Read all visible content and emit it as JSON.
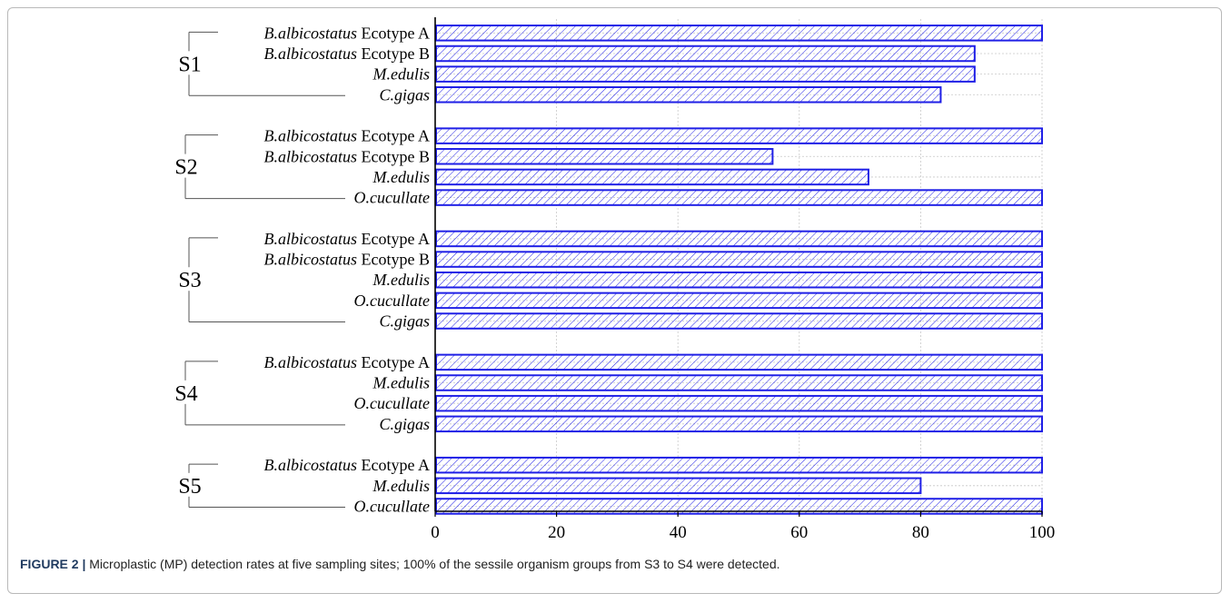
{
  "caption": {
    "label": "FIGURE 2 |",
    "text": "Microplastic (MP) detection rates at five sampling sites; 100% of the sessile organism groups from S3 to S4 were detected."
  },
  "colors": {
    "bar_stroke": "#1f1fe6",
    "hatch": "#1f1fe6",
    "grid": "#c8c8c8",
    "axis": "#000000"
  },
  "chart_data": {
    "type": "bar",
    "orientation": "horizontal",
    "title": "",
    "xlabel": "",
    "ylabel": "",
    "xlim": [
      0,
      100
    ],
    "xticks": [
      0,
      20,
      40,
      60,
      80,
      100
    ],
    "grid": "vertical dashed",
    "groups": [
      {
        "name": "S1",
        "items": [
          {
            "species": "B.albicostatus",
            "suffix": " Ecotype A",
            "value": 100
          },
          {
            "species": "B.albicostatus",
            "suffix": " Ecotype B",
            "value": 88.9
          },
          {
            "species": "M.edulis",
            "suffix": "",
            "value": 88.9
          },
          {
            "species": "C.gigas",
            "suffix": "",
            "value": 83.3
          }
        ]
      },
      {
        "name": "S2",
        "items": [
          {
            "species": "B.albicostatus",
            "suffix": " Ecotype A",
            "value": 100
          },
          {
            "species": "B.albicostatus",
            "suffix": " Ecotype B",
            "value": 55.6
          },
          {
            "species": "M.edulis",
            "suffix": "",
            "value": 71.4
          },
          {
            "species": "O.cucullate",
            "suffix": "",
            "value": 100
          }
        ]
      },
      {
        "name": "S3",
        "items": [
          {
            "species": "B.albicostatus",
            "suffix": " Ecotype A",
            "value": 100
          },
          {
            "species": "B.albicostatus",
            "suffix": " Ecotype B",
            "value": 100
          },
          {
            "species": "M.edulis",
            "suffix": "",
            "value": 100
          },
          {
            "species": "O.cucullate",
            "suffix": "",
            "value": 100
          },
          {
            "species": "C.gigas",
            "suffix": "",
            "value": 100
          }
        ]
      },
      {
        "name": "S4",
        "items": [
          {
            "species": "B.albicostatus",
            "suffix": " Ecotype A",
            "value": 100
          },
          {
            "species": "M.edulis",
            "suffix": "",
            "value": 100
          },
          {
            "species": "O.cucullate",
            "suffix": "",
            "value": 100
          },
          {
            "species": "C.gigas",
            "suffix": "",
            "value": 100
          }
        ]
      },
      {
        "name": "S5",
        "items": [
          {
            "species": "B.albicostatus",
            "suffix": " Ecotype A",
            "value": 100
          },
          {
            "species": "M.edulis",
            "suffix": "",
            "value": 80
          },
          {
            "species": "O.cucullate",
            "suffix": "",
            "value": 100
          }
        ]
      }
    ]
  }
}
